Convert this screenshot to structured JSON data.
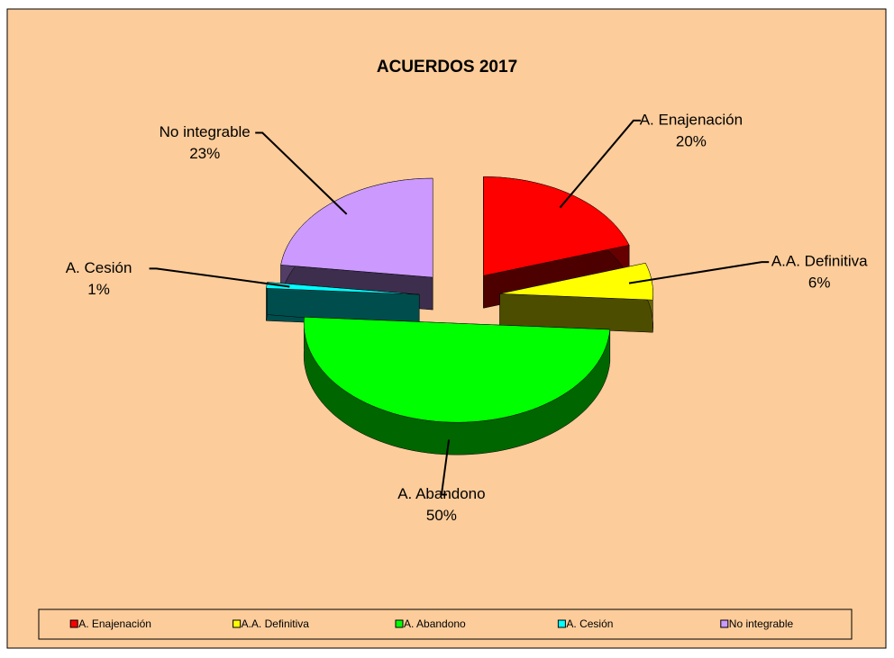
{
  "chart_data": {
    "type": "pie",
    "title": "ACUERDOS 2017",
    "categories": [
      "A. Enajenación",
      "A.A. Definitiva",
      "A. Abandono",
      "A. Cesión",
      "No integrable"
    ],
    "values": [
      20,
      6,
      50,
      1,
      23
    ],
    "value_labels": [
      "20%",
      "6%",
      "50%",
      "1%",
      "23%"
    ],
    "colors": [
      "#ff0000",
      "#ffff00",
      "#00ff00",
      "#00ffff",
      "#cc99ff"
    ],
    "legend": "bottom"
  }
}
